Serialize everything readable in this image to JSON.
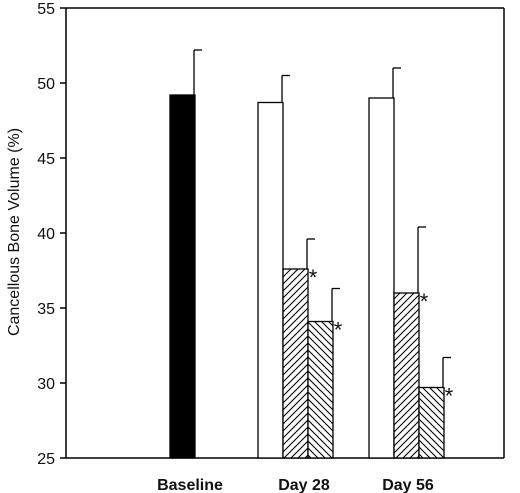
{
  "chart_data": {
    "type": "bar",
    "ylabel": "Cancellous Bone Volume (%)",
    "xlabel": "",
    "ylim": [
      25,
      55
    ],
    "yticks": [
      25,
      30,
      35,
      40,
      45,
      50,
      55
    ],
    "grid": false,
    "groups": [
      {
        "label": "Baseline",
        "bars": [
          {
            "fill": "solid",
            "value": 49.2,
            "error": 3.0,
            "significant": false
          }
        ]
      },
      {
        "label": "Day 28",
        "bars": [
          {
            "fill": "open",
            "value": 48.7,
            "error": 1.8,
            "significant": false
          },
          {
            "fill": "hatch-forward",
            "value": 37.6,
            "error": 2.0,
            "significant": true
          },
          {
            "fill": "hatch-back",
            "value": 34.1,
            "error": 2.2,
            "significant": true
          }
        ]
      },
      {
        "label": "Day 56",
        "bars": [
          {
            "fill": "open",
            "value": 49.0,
            "error": 2.0,
            "significant": false
          },
          {
            "fill": "hatch-forward",
            "value": 36.0,
            "error": 4.4,
            "significant": true
          },
          {
            "fill": "hatch-back",
            "value": 29.7,
            "error": 2.0,
            "significant": true
          }
        ]
      }
    ],
    "significance_marker": "*",
    "colors": {
      "axis": "#000000",
      "solid": "#000000",
      "open": "#ffffff"
    }
  }
}
